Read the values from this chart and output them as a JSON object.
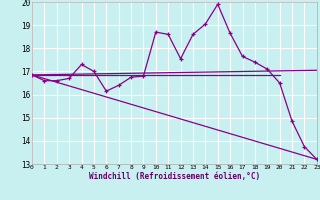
{
  "bg_color": "#c8f0f0",
  "grid_color": "#ffffff",
  "line_color": "#880088",
  "xlabel": "Windchill (Refroidissement éolien,°C)",
  "xlim": [
    0,
    23
  ],
  "ylim": [
    13,
    20
  ],
  "yticks": [
    13,
    14,
    15,
    16,
    17,
    18,
    19,
    20
  ],
  "xticks": [
    0,
    1,
    2,
    3,
    4,
    5,
    6,
    7,
    8,
    9,
    10,
    11,
    12,
    13,
    14,
    15,
    16,
    17,
    18,
    19,
    20,
    21,
    22,
    23
  ],
  "main_x": [
    0,
    1,
    2,
    3,
    4,
    5,
    6,
    7,
    8,
    9,
    10,
    11,
    12,
    13,
    14,
    15,
    16,
    17,
    18,
    19,
    20,
    21,
    22,
    23
  ],
  "main_y": [
    16.85,
    16.6,
    16.6,
    16.7,
    17.3,
    17.0,
    16.15,
    16.4,
    16.75,
    16.8,
    18.7,
    18.6,
    17.55,
    18.6,
    19.05,
    19.9,
    18.65,
    17.65,
    17.4,
    17.1,
    16.5,
    14.85,
    13.75,
    13.2
  ],
  "line2_x": [
    0,
    20
  ],
  "line2_y": [
    16.85,
    16.85
  ],
  "line3_x": [
    0,
    23
  ],
  "line3_y": [
    16.85,
    17.05
  ],
  "line4_x": [
    0,
    23
  ],
  "line4_y": [
    16.85,
    13.2
  ]
}
